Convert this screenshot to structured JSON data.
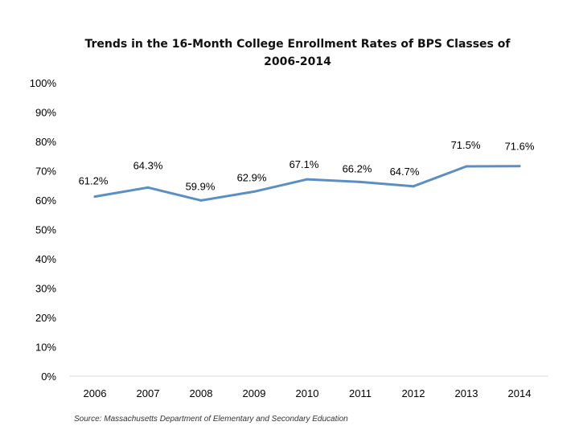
{
  "chart_data": {
    "type": "line",
    "title_line1": "Trends in the 16-Month College Enrollment Rates of BPS Classes of",
    "title_line2": "2006-2014",
    "categories": [
      "2006",
      "2007",
      "2008",
      "2009",
      "2010",
      "2011",
      "2012",
      "2013",
      "2014"
    ],
    "series": [
      {
        "values": [
          61.2,
          64.3,
          59.9,
          62.9,
          67.1,
          66.2,
          64.7,
          71.5,
          71.6
        ],
        "labels": [
          "61.2%",
          "64.3%",
          "59.9%",
          "62.9%",
          "67.1%",
          "66.2%",
          "64.7%",
          "71.5%",
          "71.6%"
        ]
      }
    ],
    "ylim": [
      0,
      100
    ],
    "yticks": [
      "0%",
      "10%",
      "20%",
      "30%",
      "40%",
      "50%",
      "60%",
      "70%",
      "80%",
      "90%",
      "100%"
    ],
    "grid": false,
    "line_color": "#5b8fc4",
    "source": "Source: Massachusetts Department of Elementary and Secondary Education"
  }
}
